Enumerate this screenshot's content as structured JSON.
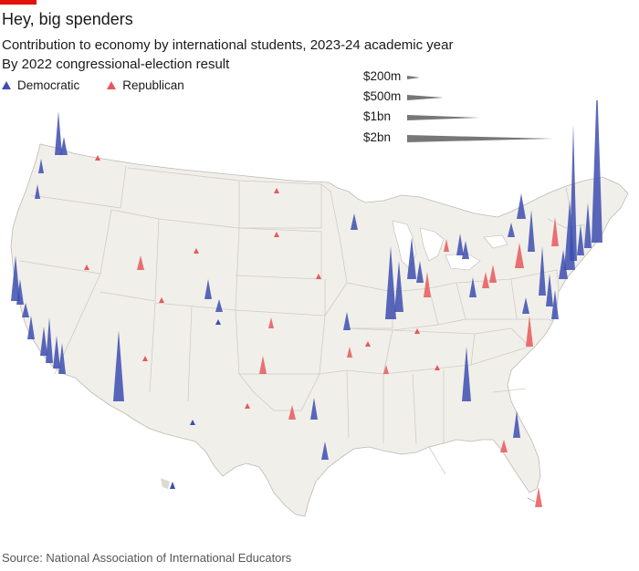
{
  "title": "Hey, big spenders",
  "subtitle": "Contribution to economy by international students, 2023-24 academic year",
  "subtitle2": "By 2022 congressional-election result",
  "legend": {
    "democratic": "Democratic",
    "republican": "Republican"
  },
  "size_scale": [
    {
      "label": "$200m",
      "value_m": 200
    },
    {
      "label": "$500m",
      "value_m": 500
    },
    {
      "label": "$1bn",
      "value_m": 1000
    },
    {
      "label": "$2bn",
      "value_m": 2000
    }
  ],
  "colors": {
    "democratic": "#3d4eb0",
    "republican": "#e8585a",
    "land": "#f1efea",
    "border": "#c9c6be",
    "accent": "#e3120b"
  },
  "source": "Source: National Association of International Educators"
}
